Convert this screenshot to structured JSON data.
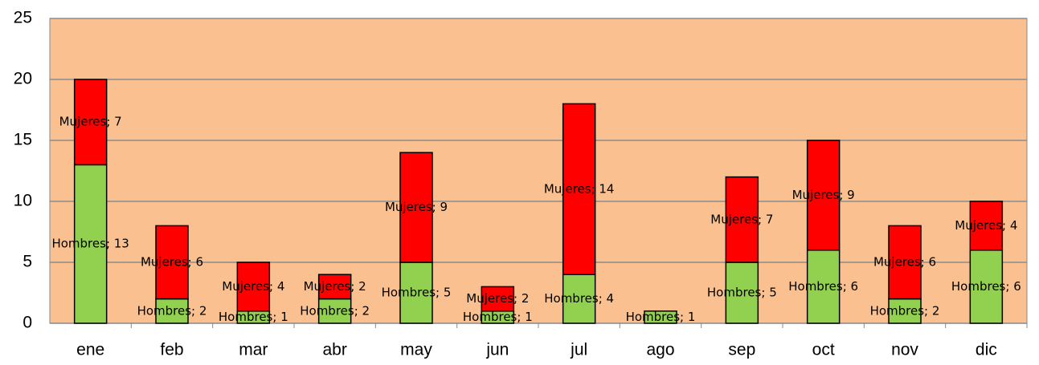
{
  "chart_data": {
    "type": "stacked-bar",
    "categories": [
      "ene",
      "feb",
      "mar",
      "abr",
      "may",
      "jun",
      "jul",
      "ago",
      "sep",
      "oct",
      "nov",
      "dic"
    ],
    "series": [
      {
        "color": "#92d050",
        "values": [
          13,
          2,
          1,
          2,
          5,
          1,
          4,
          1,
          5,
          6,
          2,
          6
        ],
        "value_labels": [
          "Hombres; 13",
          "Hombres; 2",
          "Hombres; 1",
          "Hombres; 2",
          "Hombres; 5",
          "Hombres; 1",
          "Hombres; 4",
          "Hombres; 1",
          "Hombres; 5",
          "Hombres; 6",
          "Hombres; 2",
          "Hombres; 6"
        ]
      },
      {
        "color": "#ff0000",
        "values": [
          7,
          6,
          4,
          2,
          9,
          2,
          14,
          0,
          7,
          9,
          6,
          4
        ],
        "value_labels": [
          "Mujeres; 7",
          "Mujeres; 6",
          "Mujeres; 4",
          "Mujeres; 2",
          "Mujeres; 9",
          "Mujeres; 2",
          "Mujeres; 14",
          null,
          "Mujeres; 7",
          "Mujeres; 9",
          "Mujeres; 6",
          "Mujeres; 4"
        ]
      }
    ],
    "ylim": [
      0,
      25
    ],
    "yticks": [
      0,
      5,
      10,
      15,
      20,
      25
    ],
    "grid": true,
    "plot_background": "#fac090"
  }
}
